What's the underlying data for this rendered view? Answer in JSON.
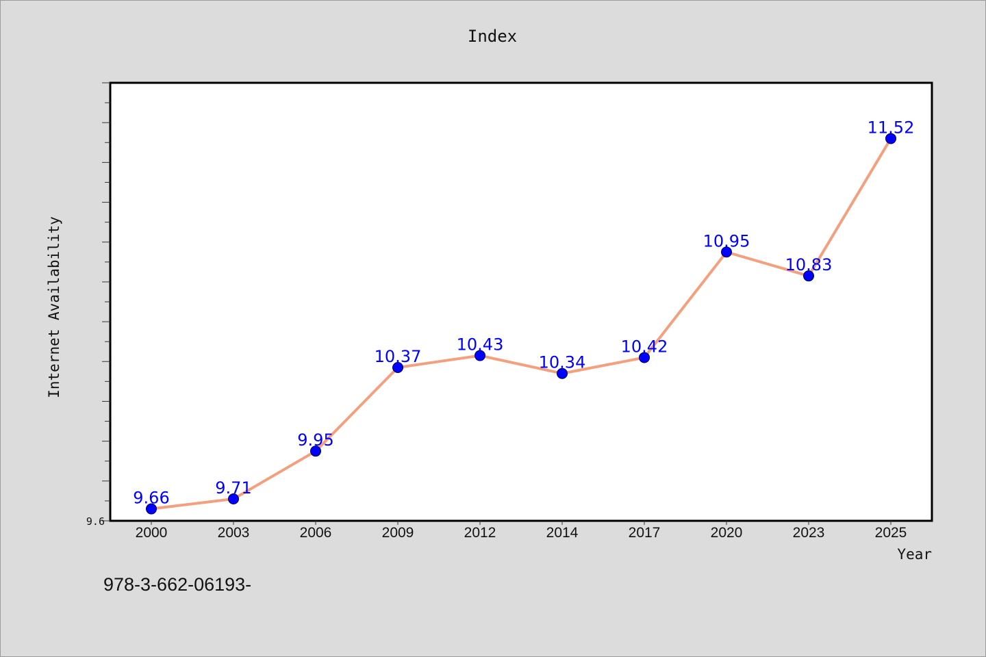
{
  "chart_data": {
    "type": "line",
    "title": "Index",
    "xlabel": "Year",
    "ylabel": "Internet Availability",
    "categories": [
      "2000",
      "2003",
      "2006",
      "2009",
      "2012",
      "2014",
      "2017",
      "2020",
      "2023",
      "2025"
    ],
    "series": [
      {
        "values": [
          9.66,
          9.71,
          9.95,
          10.37,
          10.43,
          10.34,
          10.42,
          10.95,
          10.83,
          11.52
        ],
        "labels": [
          "9.66",
          "9.71",
          "9.95",
          "10.37",
          "10.43",
          "10.34",
          "10.42",
          "10.95",
          "10.83",
          "11.52"
        ],
        "line_color": "#f4a07e",
        "marker_color": "#0000ff"
      }
    ],
    "y_tick_labels": [
      "9.6"
    ],
    "ylim": [
      9.6,
      11.8
    ],
    "grid": false,
    "legend": "none"
  },
  "footer": {
    "text": "978-3-662-06193-"
  },
  "colors": {
    "background": "#dcdcdc",
    "plot_background": "#ffffff",
    "label_color": "#0000ff"
  }
}
